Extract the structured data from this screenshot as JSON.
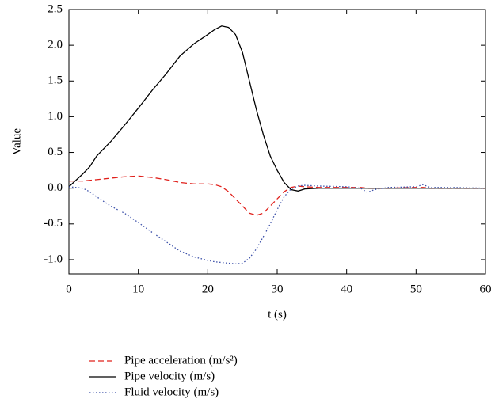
{
  "chart_data": {
    "type": "line",
    "x_label": "t (s)",
    "y_label": "Value",
    "x": [
      0,
      2,
      3,
      4,
      6,
      8,
      10,
      12,
      14,
      16,
      18,
      20,
      21,
      22,
      23,
      24,
      25,
      26,
      27,
      28,
      29,
      30,
      31,
      32,
      33,
      34,
      36,
      40,
      42,
      43,
      44,
      46,
      50,
      51,
      52,
      55,
      60
    ],
    "series": [
      {
        "name": "Pipe acceleration (m/s²)",
        "color": "#e0201b",
        "dash": "dashed",
        "values": [
          0.1,
          0.1,
          0.11,
          0.12,
          0.14,
          0.16,
          0.17,
          0.15,
          0.12,
          0.08,
          0.06,
          0.06,
          0.05,
          0.02,
          -0.05,
          -0.15,
          -0.25,
          -0.35,
          -0.38,
          -0.35,
          -0.25,
          -0.15,
          -0.05,
          0.01,
          0.03,
          0.02,
          0.01,
          0.01,
          0.01,
          0,
          0,
          0,
          0.01,
          0.01,
          0,
          0,
          0
        ]
      },
      {
        "name": "Pipe velocity (m/s)",
        "color": "#000000",
        "dash": "solid",
        "values": [
          0.02,
          0.2,
          0.3,
          0.45,
          0.65,
          0.88,
          1.12,
          1.37,
          1.6,
          1.85,
          2.02,
          2.15,
          2.22,
          2.27,
          2.25,
          2.15,
          1.9,
          1.5,
          1.1,
          0.75,
          0.45,
          0.25,
          0.08,
          -0.02,
          -0.04,
          -0.01,
          0,
          0,
          0,
          0,
          0,
          0,
          0,
          0,
          0,
          0,
          0
        ]
      },
      {
        "name": "Fluid velocity (m/s)",
        "color": "#3a4fa8",
        "dash": "dotted",
        "values": [
          0.02,
          0,
          -0.05,
          -0.12,
          -0.25,
          -0.35,
          -0.48,
          -0.62,
          -0.75,
          -0.88,
          -0.96,
          -1.01,
          -1.03,
          -1.04,
          -1.05,
          -1.06,
          -1.05,
          -0.98,
          -0.85,
          -0.68,
          -0.5,
          -0.3,
          -0.12,
          -0.01,
          0.03,
          0.04,
          0.03,
          0.02,
          0,
          -0.06,
          -0.02,
          0.01,
          0.02,
          0.05,
          0.01,
          0.01,
          0
        ]
      }
    ],
    "xlim": [
      0,
      60
    ],
    "xticks": [
      0,
      10,
      20,
      30,
      40,
      50,
      60
    ],
    "ylim": [
      -1.2,
      2.5
    ],
    "yticks": [
      2.5,
      {
        "value": 2,
        "label": "2.0"
      },
      1.5,
      {
        "value": 1,
        "label": "1.0"
      },
      0.5,
      {
        "value": 0,
        "label": "0.0"
      },
      -0.5,
      {
        "value": -1,
        "label": "-1.0"
      }
    ],
    "legend": "below"
  }
}
